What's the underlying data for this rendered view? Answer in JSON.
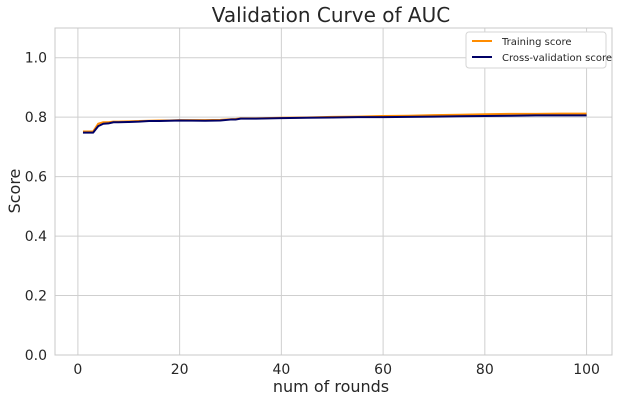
{
  "chart_data": {
    "type": "line",
    "title": "Validation Curve of AUC",
    "xlabel": "num of rounds",
    "ylabel": "Score",
    "xlim": [
      -4.5,
      105
    ],
    "ylim": [
      0.0,
      1.1
    ],
    "xticks": [
      0,
      20,
      40,
      60,
      80,
      100
    ],
    "yticks": [
      0.0,
      0.2,
      0.4,
      0.6,
      0.8,
      1.0
    ],
    "grid": true,
    "legend_position": "top-right",
    "series": [
      {
        "name": "Training score",
        "color": "#ff8c00",
        "x": [
          1,
          2,
          3,
          4,
          5,
          6,
          7,
          8,
          10,
          12,
          14,
          16,
          18,
          20,
          25,
          28,
          30,
          31,
          32,
          35,
          40,
          45,
          50,
          55,
          60,
          65,
          70,
          75,
          80,
          85,
          90,
          95,
          100
        ],
        "y": [
          0.752,
          0.752,
          0.752,
          0.778,
          0.783,
          0.783,
          0.785,
          0.785,
          0.786,
          0.787,
          0.788,
          0.789,
          0.789,
          0.79,
          0.79,
          0.791,
          0.793,
          0.794,
          0.796,
          0.796,
          0.798,
          0.799,
          0.801,
          0.802,
          0.804,
          0.805,
          0.807,
          0.808,
          0.81,
          0.811,
          0.811,
          0.812,
          0.812
        ]
      },
      {
        "name": "Cross-validation score",
        "color": "#000066",
        "x": [
          1,
          2,
          3,
          4,
          5,
          6,
          7,
          8,
          10,
          12,
          14,
          16,
          18,
          20,
          25,
          28,
          30,
          31,
          32,
          35,
          40,
          45,
          50,
          55,
          60,
          65,
          70,
          75,
          80,
          85,
          90,
          95,
          100
        ],
        "y": [
          0.748,
          0.748,
          0.748,
          0.77,
          0.778,
          0.779,
          0.783,
          0.783,
          0.784,
          0.785,
          0.787,
          0.787,
          0.788,
          0.789,
          0.788,
          0.789,
          0.792,
          0.792,
          0.795,
          0.795,
          0.797,
          0.798,
          0.799,
          0.8,
          0.8,
          0.801,
          0.802,
          0.803,
          0.804,
          0.805,
          0.806,
          0.806,
          0.806
        ]
      }
    ]
  }
}
